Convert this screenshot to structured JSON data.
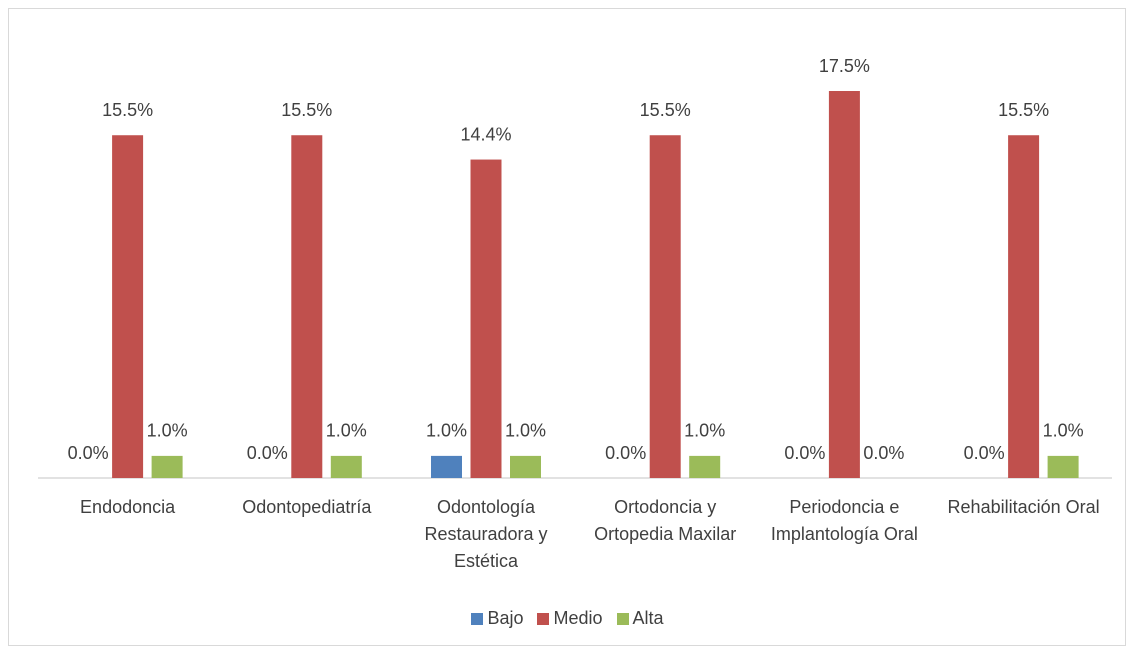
{
  "chart_data": {
    "type": "bar",
    "categories": [
      "Endodoncia",
      "Odontopediatría",
      "Odontología Restauradora y Estética",
      "Ortodoncia y Ortopedia Maxilar",
      "Periodoncia e Implantología Oral",
      "Rehabilitación Oral"
    ],
    "series": [
      {
        "name": "Bajo",
        "color": "#4f81bd",
        "values": [
          0,
          0,
          1.0,
          0,
          0,
          0
        ],
        "value_labels": [
          "0.0%",
          "0.0%",
          "1.0%",
          "0.0%",
          "0.0%",
          "0.0%"
        ]
      },
      {
        "name": "Medio",
        "color": "#c0504d",
        "values": [
          15.5,
          15.5,
          14.4,
          15.5,
          17.5,
          15.5
        ],
        "value_labels": [
          "15.5%",
          "15.5%",
          "14.4%",
          "15.5%",
          "17.5%",
          "15.5%"
        ]
      },
      {
        "name": "Alta",
        "color": "#9bbb59",
        "values": [
          1.0,
          1.0,
          1.0,
          1.0,
          0,
          1.0
        ],
        "value_labels": [
          "1.0%",
          "1.0%",
          "1.0%",
          "1.0%",
          "0.0%",
          "1.0%"
        ]
      }
    ],
    "legend": "bottom"
  }
}
